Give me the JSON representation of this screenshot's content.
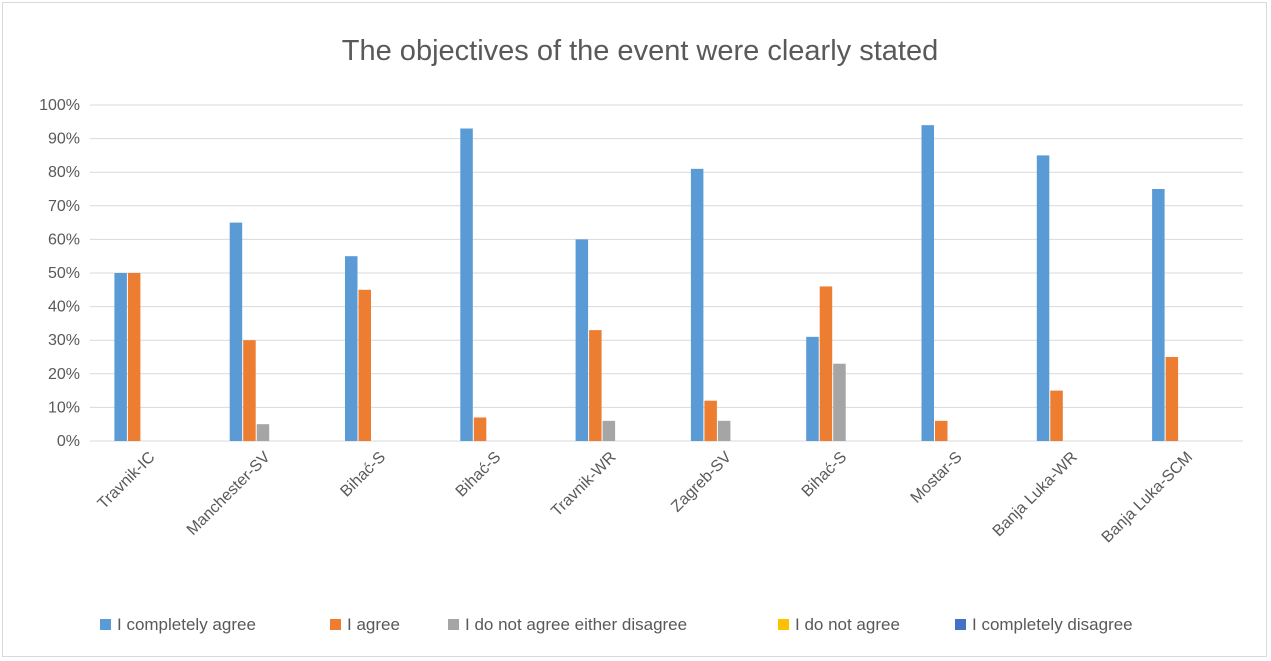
{
  "chart_data": {
    "type": "bar",
    "title": "The objectives of the event were clearly stated",
    "categories": [
      "Travnik-IC",
      "Manchester-SV",
      "Bihać-S",
      "Bihać-S",
      "Travnik-WR",
      "Zagreb-SV",
      "Bihać-S",
      "Mostar-S",
      "Banja Luka-WR",
      "Banja Luka-SCM"
    ],
    "series": [
      {
        "name": "I completely agree",
        "color": "#5b9bd5",
        "values": [
          50,
          65,
          55,
          93,
          60,
          81,
          31,
          94,
          85,
          75
        ]
      },
      {
        "name": "I agree",
        "color": "#ed7d31",
        "values": [
          50,
          30,
          45,
          7,
          33,
          12,
          46,
          6,
          15,
          25
        ]
      },
      {
        "name": "I do not agree either disagree",
        "color": "#a5a5a5",
        "values": [
          0,
          5,
          0,
          0,
          6,
          6,
          23,
          0,
          0,
          0
        ]
      },
      {
        "name": "I do not agree",
        "color": "#ffc000",
        "values": [
          0,
          0,
          0,
          0,
          0,
          0,
          0,
          0,
          0,
          0
        ]
      },
      {
        "name": "I completely disagree",
        "color": "#4472c4",
        "values": [
          0,
          0,
          0,
          0,
          0,
          0,
          0,
          0,
          0,
          0
        ]
      }
    ],
    "ylim": [
      0,
      100
    ],
    "y_ticks": [
      "0%",
      "10%",
      "20%",
      "30%",
      "40%",
      "50%",
      "60%",
      "70%",
      "80%",
      "90%",
      "100%"
    ],
    "grid": true,
    "legend_position": "bottom"
  }
}
